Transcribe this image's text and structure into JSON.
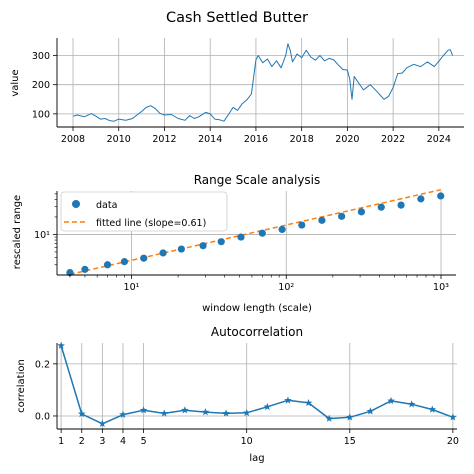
{
  "figure": {
    "suptitle": "Cash Settled Butter"
  },
  "chart_data": [
    {
      "type": "line",
      "title": "",
      "xlabel": "",
      "ylabel": "value",
      "xlim": [
        2007.3,
        2025.1
      ],
      "ylim": [
        55,
        360
      ],
      "grid": true,
      "color": "#1f77b4",
      "x_ticks": [
        "2008",
        "2010",
        "2012",
        "2014",
        "2016",
        "2018",
        "2020",
        "2022",
        "2024"
      ],
      "y_ticks": [
        "100",
        "200",
        "300"
      ],
      "x_tick_values": [
        2008,
        2010,
        2012,
        2014,
        2016,
        2018,
        2020,
        2022,
        2024
      ],
      "y_tick_values": [
        100,
        200,
        300
      ],
      "x": [
        2008.0,
        2008.2,
        2008.5,
        2008.8,
        2009.0,
        2009.2,
        2009.4,
        2009.6,
        2009.8,
        2010.0,
        2010.3,
        2010.6,
        2010.8,
        2011.0,
        2011.2,
        2011.4,
        2011.6,
        2011.8,
        2012.0,
        2012.3,
        2012.6,
        2012.9,
        2013.1,
        2013.3,
        2013.5,
        2013.8,
        2014.0,
        2014.2,
        2014.4,
        2014.6,
        2014.8,
        2015.0,
        2015.2,
        2015.4,
        2015.6,
        2015.8,
        2015.9,
        2016.0,
        2016.1,
        2016.3,
        2016.5,
        2016.7,
        2016.9,
        2017.1,
        2017.3,
        2017.4,
        2017.5,
        2017.6,
        2017.8,
        2018.0,
        2018.2,
        2018.4,
        2018.6,
        2018.8,
        2019.0,
        2019.2,
        2019.4,
        2019.6,
        2019.8,
        2020.0,
        2020.1,
        2020.2,
        2020.3,
        2020.5,
        2020.7,
        2021.0,
        2021.3,
        2021.6,
        2021.8,
        2022.0,
        2022.2,
        2022.4,
        2022.6,
        2022.9,
        2023.2,
        2023.5,
        2023.8,
        2024.0,
        2024.2,
        2024.4,
        2024.5,
        2024.6
      ],
      "values": [
        92,
        96,
        90,
        101,
        92,
        82,
        84,
        77,
        75,
        82,
        78,
        84,
        96,
        108,
        122,
        128,
        118,
        102,
        96,
        98,
        84,
        78,
        94,
        84,
        90,
        105,
        100,
        82,
        80,
        75,
        98,
        122,
        112,
        135,
        148,
        168,
        225,
        285,
        300,
        275,
        288,
        262,
        282,
        258,
        300,
        340,
        318,
        278,
        305,
        292,
        318,
        295,
        284,
        300,
        282,
        290,
        285,
        268,
        252,
        250,
        220,
        150,
        228,
        205,
        182,
        200,
        176,
        150,
        160,
        190,
        238,
        240,
        258,
        270,
        262,
        278,
        262,
        280,
        300,
        318,
        320,
        300
      ]
    },
    {
      "type": "scatter",
      "title": "Range Scale analysis",
      "xlabel": "window length (scale)",
      "ylabel": "rescaled range",
      "xscale": "log",
      "yscale": "log",
      "xlim": [
        3.3,
        1250
      ],
      "ylim": [
        2.0,
        56
      ],
      "grid": true,
      "x_ticks": [
        "10¹",
        "10²",
        "10³"
      ],
      "x_tick_values": [
        10,
        100,
        1000
      ],
      "y_ticks": [
        "10¹"
      ],
      "y_tick_values": [
        10
      ],
      "legend_position": "upper-left",
      "series": [
        {
          "name": "data",
          "color": "#1f77b4",
          "x": [
            4,
            5,
            7,
            9,
            12,
            16,
            21,
            29,
            38,
            51,
            70,
            94,
            126,
            170,
            228,
            306,
            411,
            552,
            741,
            996
          ],
          "values": [
            2.2,
            2.5,
            3.0,
            3.4,
            3.9,
            4.8,
            5.6,
            6.4,
            7.5,
            9.0,
            10.5,
            12.2,
            14.5,
            17.5,
            20.5,
            24.5,
            29.5,
            32.0,
            41.0,
            46.0
          ]
        },
        {
          "name": "fitted line (slope=0.61)",
          "color": "#ff7f0e",
          "style": "dashed",
          "x": [
            4,
            1000
          ],
          "values": [
            2.05,
            59.0
          ]
        }
      ]
    },
    {
      "type": "line",
      "title": "Autocorrelation",
      "xlabel": "lag",
      "ylabel": "correlation",
      "xlim": [
        0.8,
        20.2
      ],
      "ylim": [
        -0.05,
        0.28
      ],
      "grid": true,
      "color": "#1f77b4",
      "marker": "star",
      "x_ticks": [
        "1",
        "2",
        "3",
        "4",
        "5",
        "10",
        "15",
        "20"
      ],
      "x_tick_values": [
        1,
        2,
        3,
        4,
        5,
        10,
        15,
        20
      ],
      "y_ticks": [
        "0.0",
        "0.2"
      ],
      "y_tick_values": [
        0.0,
        0.2
      ],
      "x": [
        1,
        2,
        3,
        4,
        5,
        6,
        7,
        8,
        9,
        10,
        11,
        12,
        13,
        14,
        15,
        16,
        17,
        18,
        19,
        20
      ],
      "values": [
        0.27,
        0.008,
        -0.03,
        0.005,
        0.022,
        0.01,
        0.022,
        0.015,
        0.01,
        0.012,
        0.035,
        0.06,
        0.05,
        -0.01,
        -0.005,
        0.018,
        0.058,
        0.045,
        0.025,
        -0.005
      ]
    }
  ]
}
